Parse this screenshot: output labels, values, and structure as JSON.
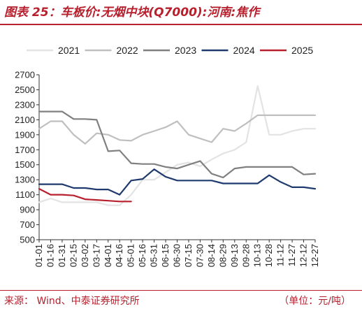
{
  "figure": {
    "title": "图表 25：车板价:无烟中块(Q7000):河南:焦作",
    "source": "来源：  Wind、中泰证券研究所",
    "unit": "（单位：元/吨）"
  },
  "chart_data": {
    "type": "line",
    "title": "",
    "xlabel": "",
    "ylabel": "",
    "x": [
      "01-01",
      "01-16",
      "01-31",
      "02-15",
      "03-02",
      "03-17",
      "04-01",
      "04-16",
      "05-01",
      "05-16",
      "05-31",
      "06-15",
      "06-30",
      "07-15",
      "07-30",
      "08-14",
      "08-29",
      "09-13",
      "09-28",
      "10-13",
      "10-28",
      "11-12",
      "11-27",
      "12-12",
      "12-27"
    ],
    "ylim": [
      500,
      2700
    ],
    "yticks": [
      500,
      700,
      900,
      1100,
      1300,
      1500,
      1700,
      1900,
      2100,
      2300,
      2500,
      2700
    ],
    "grid": false,
    "legend_position": "top",
    "series": [
      {
        "name": "2021",
        "color": "#e3e3e3",
        "values": [
          1000,
          1050,
          1000,
          1000,
          1000,
          1000,
          960,
          960,
          1100,
          1300,
          1300,
          1400,
          1500,
          1530,
          1480,
          1570,
          1650,
          1700,
          1800,
          2550,
          1900,
          1900,
          1950,
          1980,
          1980
        ]
      },
      {
        "name": "2022",
        "color": "#bfbfbf",
        "values": [
          1980,
          2080,
          2080,
          1900,
          1780,
          1920,
          1900,
          1830,
          1820,
          1900,
          1950,
          2000,
          2080,
          1900,
          1850,
          1800,
          1980,
          1950,
          2050,
          2160,
          2160,
          2160,
          2160,
          2160,
          2160
        ]
      },
      {
        "name": "2023",
        "color": "#808080",
        "values": [
          2210,
          2210,
          2210,
          2110,
          2110,
          2100,
          1680,
          1690,
          1520,
          1510,
          1510,
          1470,
          1450,
          1500,
          1550,
          1380,
          1330,
          1450,
          1470,
          1470,
          1470,
          1470,
          1470,
          1370,
          1380
        ]
      },
      {
        "name": "2024",
        "color": "#1f3a6e",
        "values": [
          1240,
          1240,
          1240,
          1190,
          1190,
          1170,
          1170,
          1100,
          1290,
          1310,
          1440,
          1340,
          1290,
          1290,
          1290,
          1290,
          1250,
          1250,
          1250,
          1250,
          1360,
          1270,
          1200,
          1200,
          1180
        ]
      },
      {
        "name": "2025",
        "color": "#b8202e",
        "values": [
          1180,
          1100,
          1100,
          1090,
          1040,
          1030,
          1020,
          1010,
          1010,
          null,
          null,
          null,
          null,
          null,
          null,
          null,
          null,
          null,
          null,
          null,
          null,
          null,
          null,
          null,
          null
        ]
      }
    ]
  }
}
